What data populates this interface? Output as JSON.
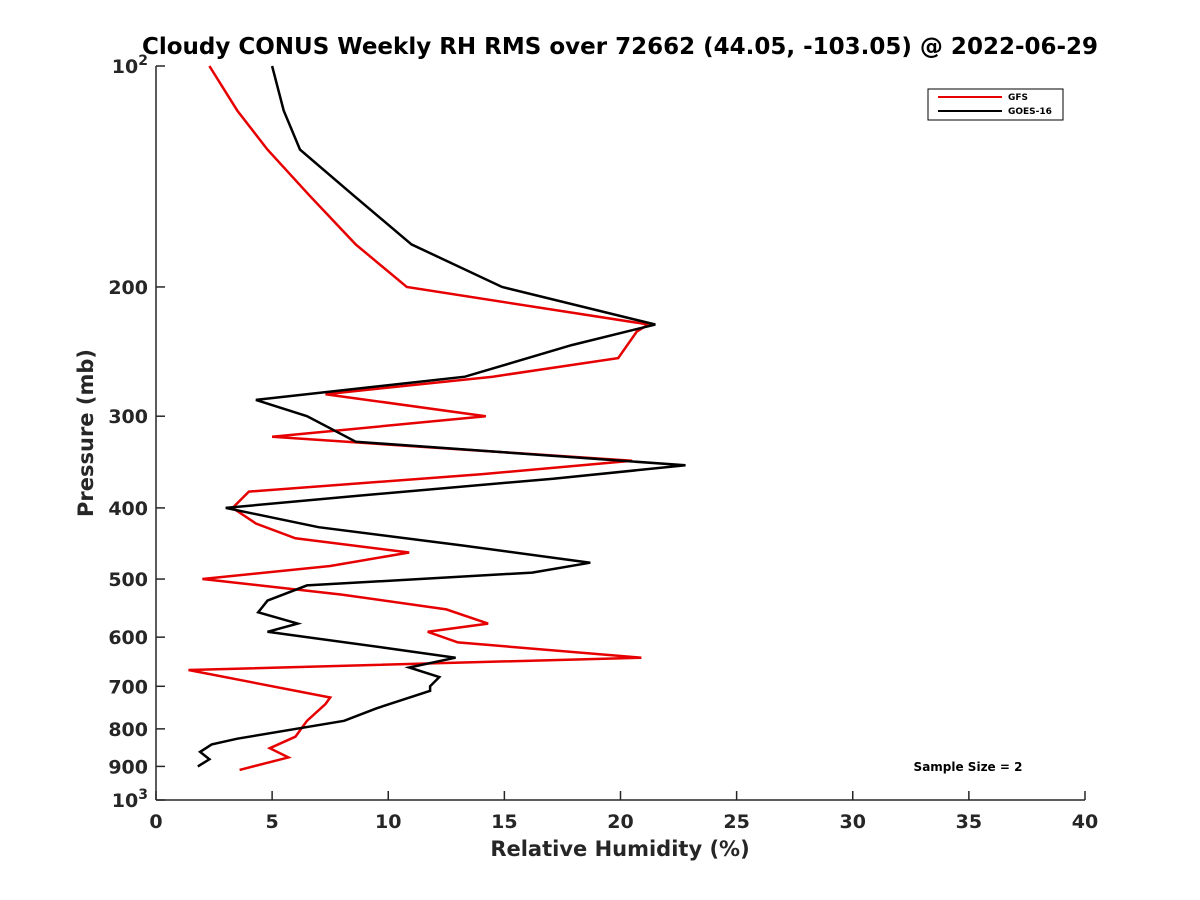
{
  "chart_data": {
    "type": "line",
    "title": "Cloudy CONUS Weekly RH RMS over 72662 (44.05, -103.05) @ 2022-06-29",
    "xlabel": "Relative Humidity (%)",
    "ylabel": "Pressure (mb)",
    "xlim": [
      0,
      40
    ],
    "ylim": [
      100,
      1000
    ],
    "y_scale": "log",
    "y_reversed": true,
    "x_ticks": [
      "0",
      "5",
      "10",
      "15",
      "20",
      "25",
      "30",
      "35",
      "40"
    ],
    "y_tick_labels": [
      {
        "value": 100,
        "base": "10",
        "exp": "2"
      },
      {
        "value": 200,
        "text": "200"
      },
      {
        "value": 300,
        "text": "300"
      },
      {
        "value": 400,
        "text": "400"
      },
      {
        "value": 500,
        "text": "500"
      },
      {
        "value": 600,
        "text": "600"
      },
      {
        "value": 700,
        "text": "700"
      },
      {
        "value": 800,
        "text": "800"
      },
      {
        "value": 900,
        "text": "900"
      },
      {
        "value": 1000,
        "base": "10",
        "exp": "3"
      }
    ],
    "grid": false,
    "legend_position": "top-right",
    "annotation": "Sample Size = 2",
    "series": [
      {
        "name": "GFS",
        "color": "#e60000",
        "points": [
          [
            2.3,
            100
          ],
          [
            3.5,
            115
          ],
          [
            4.8,
            130
          ],
          [
            6.6,
            150
          ],
          [
            8.6,
            175
          ],
          [
            10.8,
            200
          ],
          [
            21.2,
            225
          ],
          [
            20.7,
            230
          ],
          [
            19.9,
            250
          ],
          [
            14.5,
            265
          ],
          [
            7.3,
            280
          ],
          [
            14.2,
            300
          ],
          [
            5.0,
            320
          ],
          [
            20.5,
            345
          ],
          [
            14.0,
            360
          ],
          [
            4.0,
            380
          ],
          [
            3.3,
            400
          ],
          [
            4.3,
            420
          ],
          [
            6.0,
            440
          ],
          [
            10.9,
            460
          ],
          [
            7.5,
            480
          ],
          [
            2.0,
            500
          ],
          [
            8.0,
            525
          ],
          [
            12.5,
            550
          ],
          [
            14.3,
            575
          ],
          [
            11.7,
            590
          ],
          [
            13.0,
            610
          ],
          [
            20.9,
            640
          ],
          [
            1.4,
            665
          ],
          [
            7.5,
            725
          ],
          [
            7.3,
            740
          ],
          [
            6.5,
            780
          ],
          [
            6.0,
            820
          ],
          [
            4.9,
            850
          ],
          [
            5.7,
            875
          ],
          [
            3.6,
            910
          ]
        ]
      },
      {
        "name": "GOES-16",
        "color": "#000000",
        "points": [
          [
            5.0,
            100
          ],
          [
            5.5,
            115
          ],
          [
            6.2,
            130
          ],
          [
            8.5,
            150
          ],
          [
            11.0,
            175
          ],
          [
            14.9,
            200
          ],
          [
            21.5,
            225
          ],
          [
            17.9,
            240
          ],
          [
            13.3,
            265
          ],
          [
            4.3,
            285
          ],
          [
            6.5,
            300
          ],
          [
            8.6,
            325
          ],
          [
            22.8,
            350
          ],
          [
            17.1,
            365
          ],
          [
            8.7,
            385
          ],
          [
            3.0,
            400
          ],
          [
            7.0,
            425
          ],
          [
            13.2,
            450
          ],
          [
            18.7,
            475
          ],
          [
            16.2,
            490
          ],
          [
            6.5,
            510
          ],
          [
            4.8,
            535
          ],
          [
            4.4,
            555
          ],
          [
            6.1,
            575
          ],
          [
            4.8,
            590
          ],
          [
            9.8,
            620
          ],
          [
            12.9,
            640
          ],
          [
            10.9,
            660
          ],
          [
            12.2,
            680
          ],
          [
            11.8,
            700
          ],
          [
            11.8,
            710
          ],
          [
            9.5,
            750
          ],
          [
            8.1,
            780
          ],
          [
            3.5,
            825
          ],
          [
            2.4,
            840
          ],
          [
            1.9,
            860
          ],
          [
            2.3,
            880
          ],
          [
            1.8,
            900
          ]
        ]
      }
    ]
  }
}
